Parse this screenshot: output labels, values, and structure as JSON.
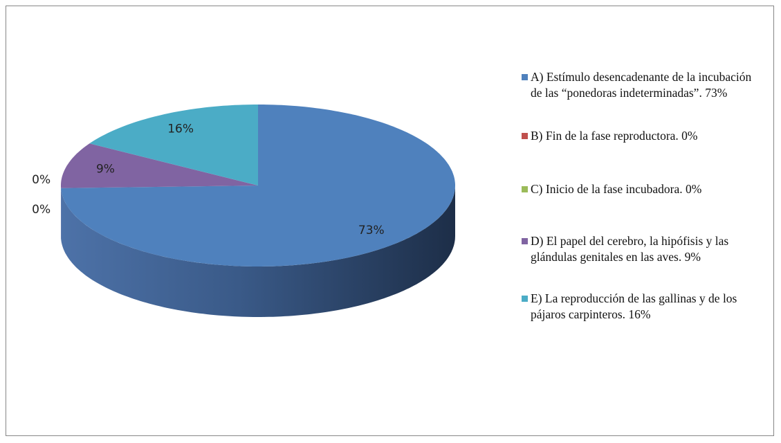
{
  "chart_data": {
    "type": "pie3d",
    "categories": [
      "A) Estímulo desencadenante de la incubación de las “ponedoras indeterminadas”. 73%",
      "B) Fin de la fase reproductora. 0%",
      "C) Inicio de la fase incubadora. 0%",
      "D) El papel del cerebro, la hipófisis y las glándulas genitales en las aves. 9%",
      "E) La reproducción de las gallinas y de los pájaros carpinteros. 16%"
    ],
    "values": [
      73,
      0,
      0,
      9,
      16
    ],
    "value_labels": [
      "73%",
      "0%",
      "0%",
      "9%",
      "16%"
    ],
    "colors": [
      "#4f81bd",
      "#c0504d",
      "#9bbb59",
      "#8064a2",
      "#4bacc6"
    ],
    "legend": "right"
  }
}
